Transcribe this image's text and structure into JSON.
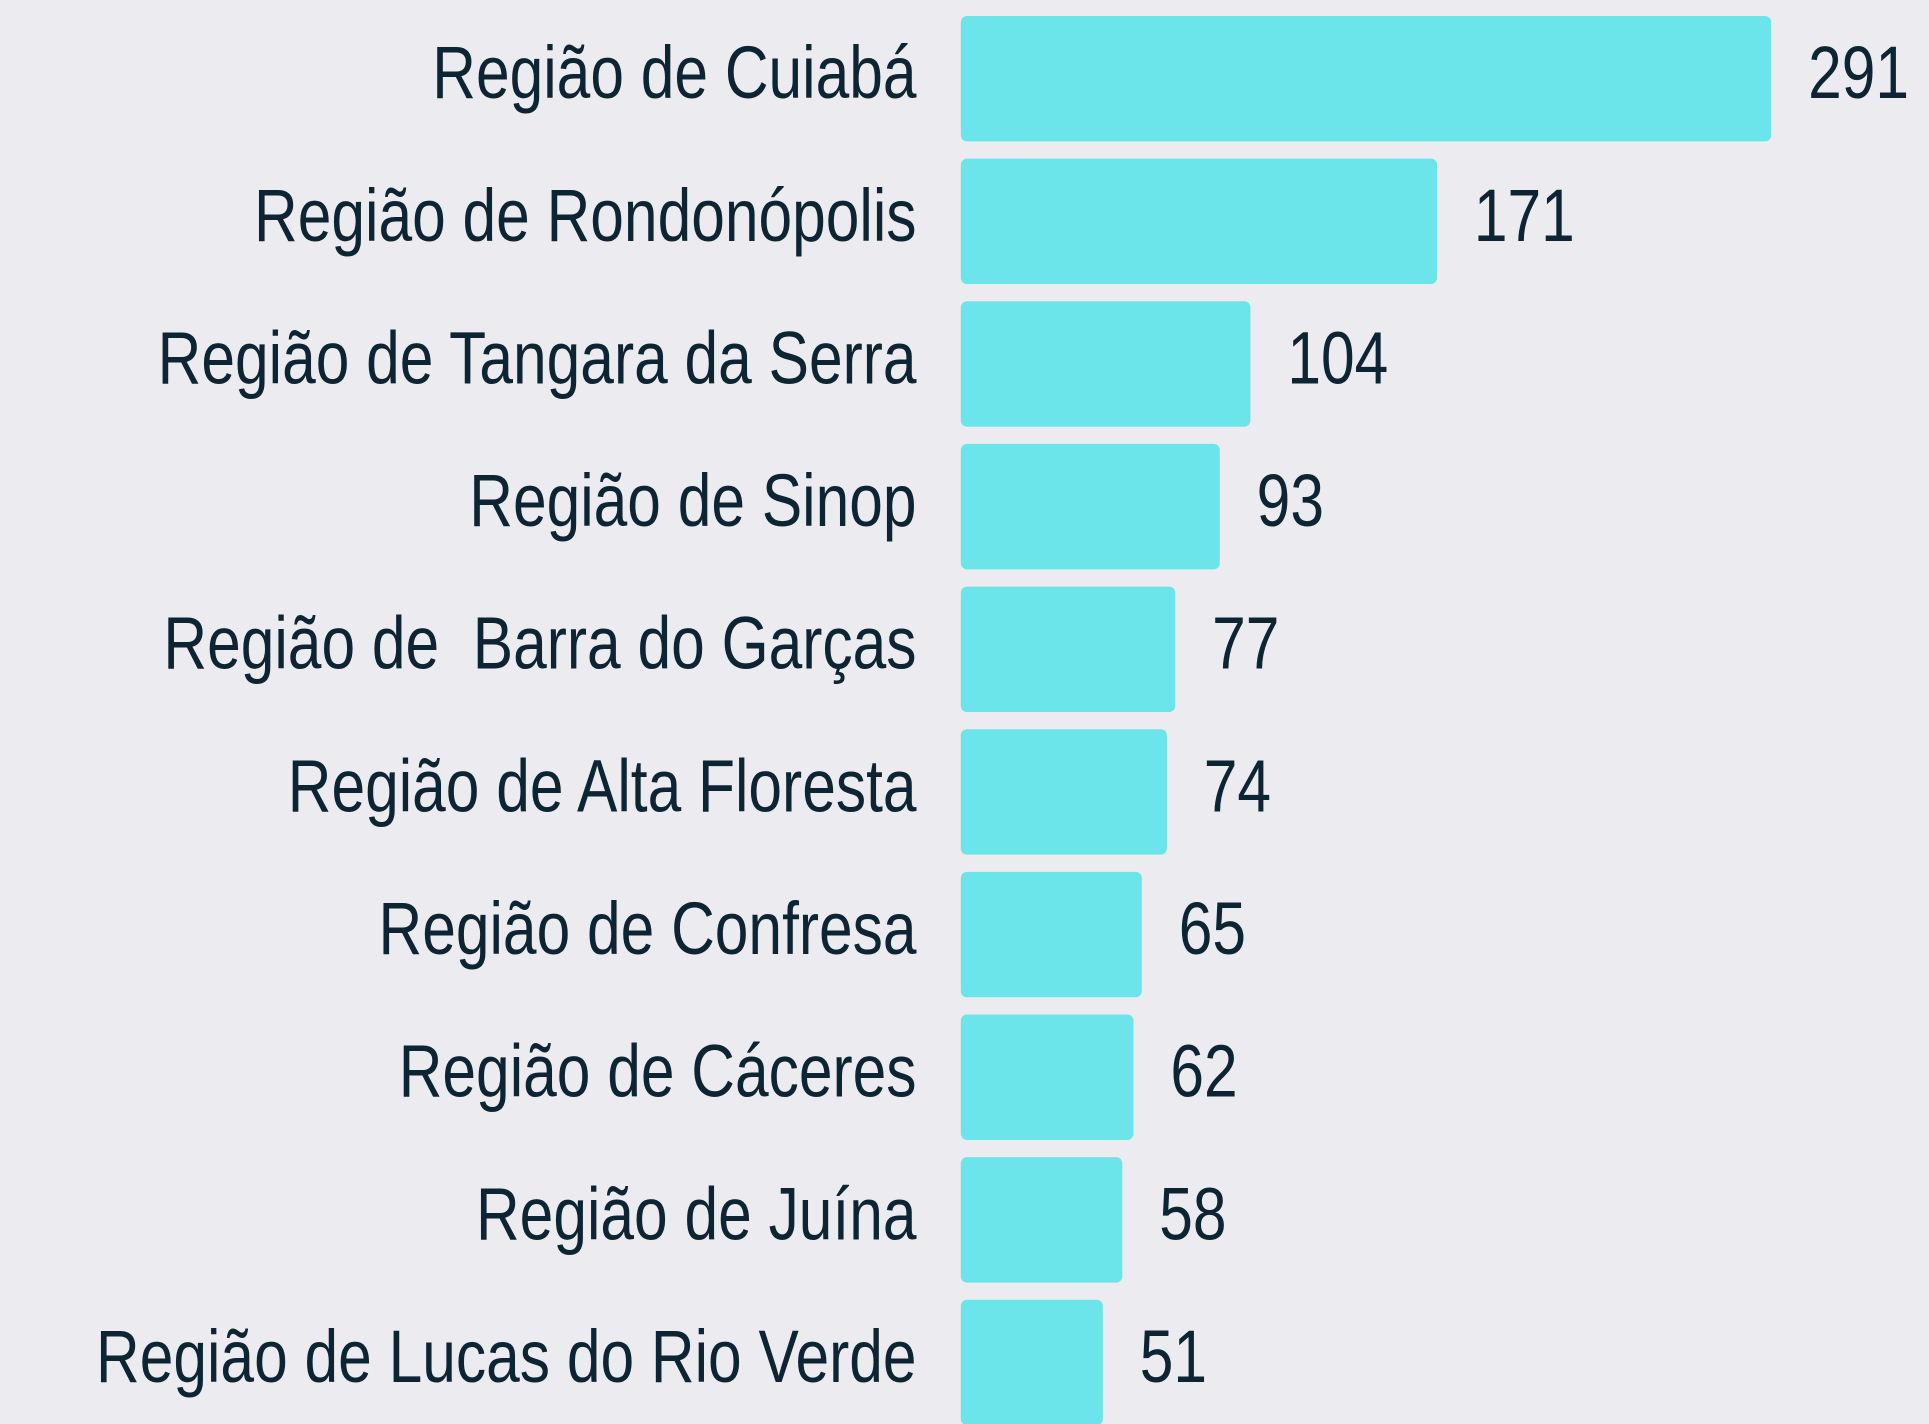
{
  "chart_data": {
    "type": "bar",
    "orientation": "horizontal",
    "color": "#6ce5ea",
    "categories": [
      "Região de Cuiabá",
      "Região de Rondonópolis",
      "Região de Tangara da Serra",
      "Região de Sinop",
      "Região de  Barra do Garças",
      "Região de Alta Floresta",
      "Região de Confresa",
      "Região de Cáceres",
      "Região de Juína",
      "Região de Lucas do Rio Verde"
    ],
    "values": [
      291,
      171,
      104,
      93,
      77,
      74,
      65,
      62,
      58,
      51
    ]
  }
}
